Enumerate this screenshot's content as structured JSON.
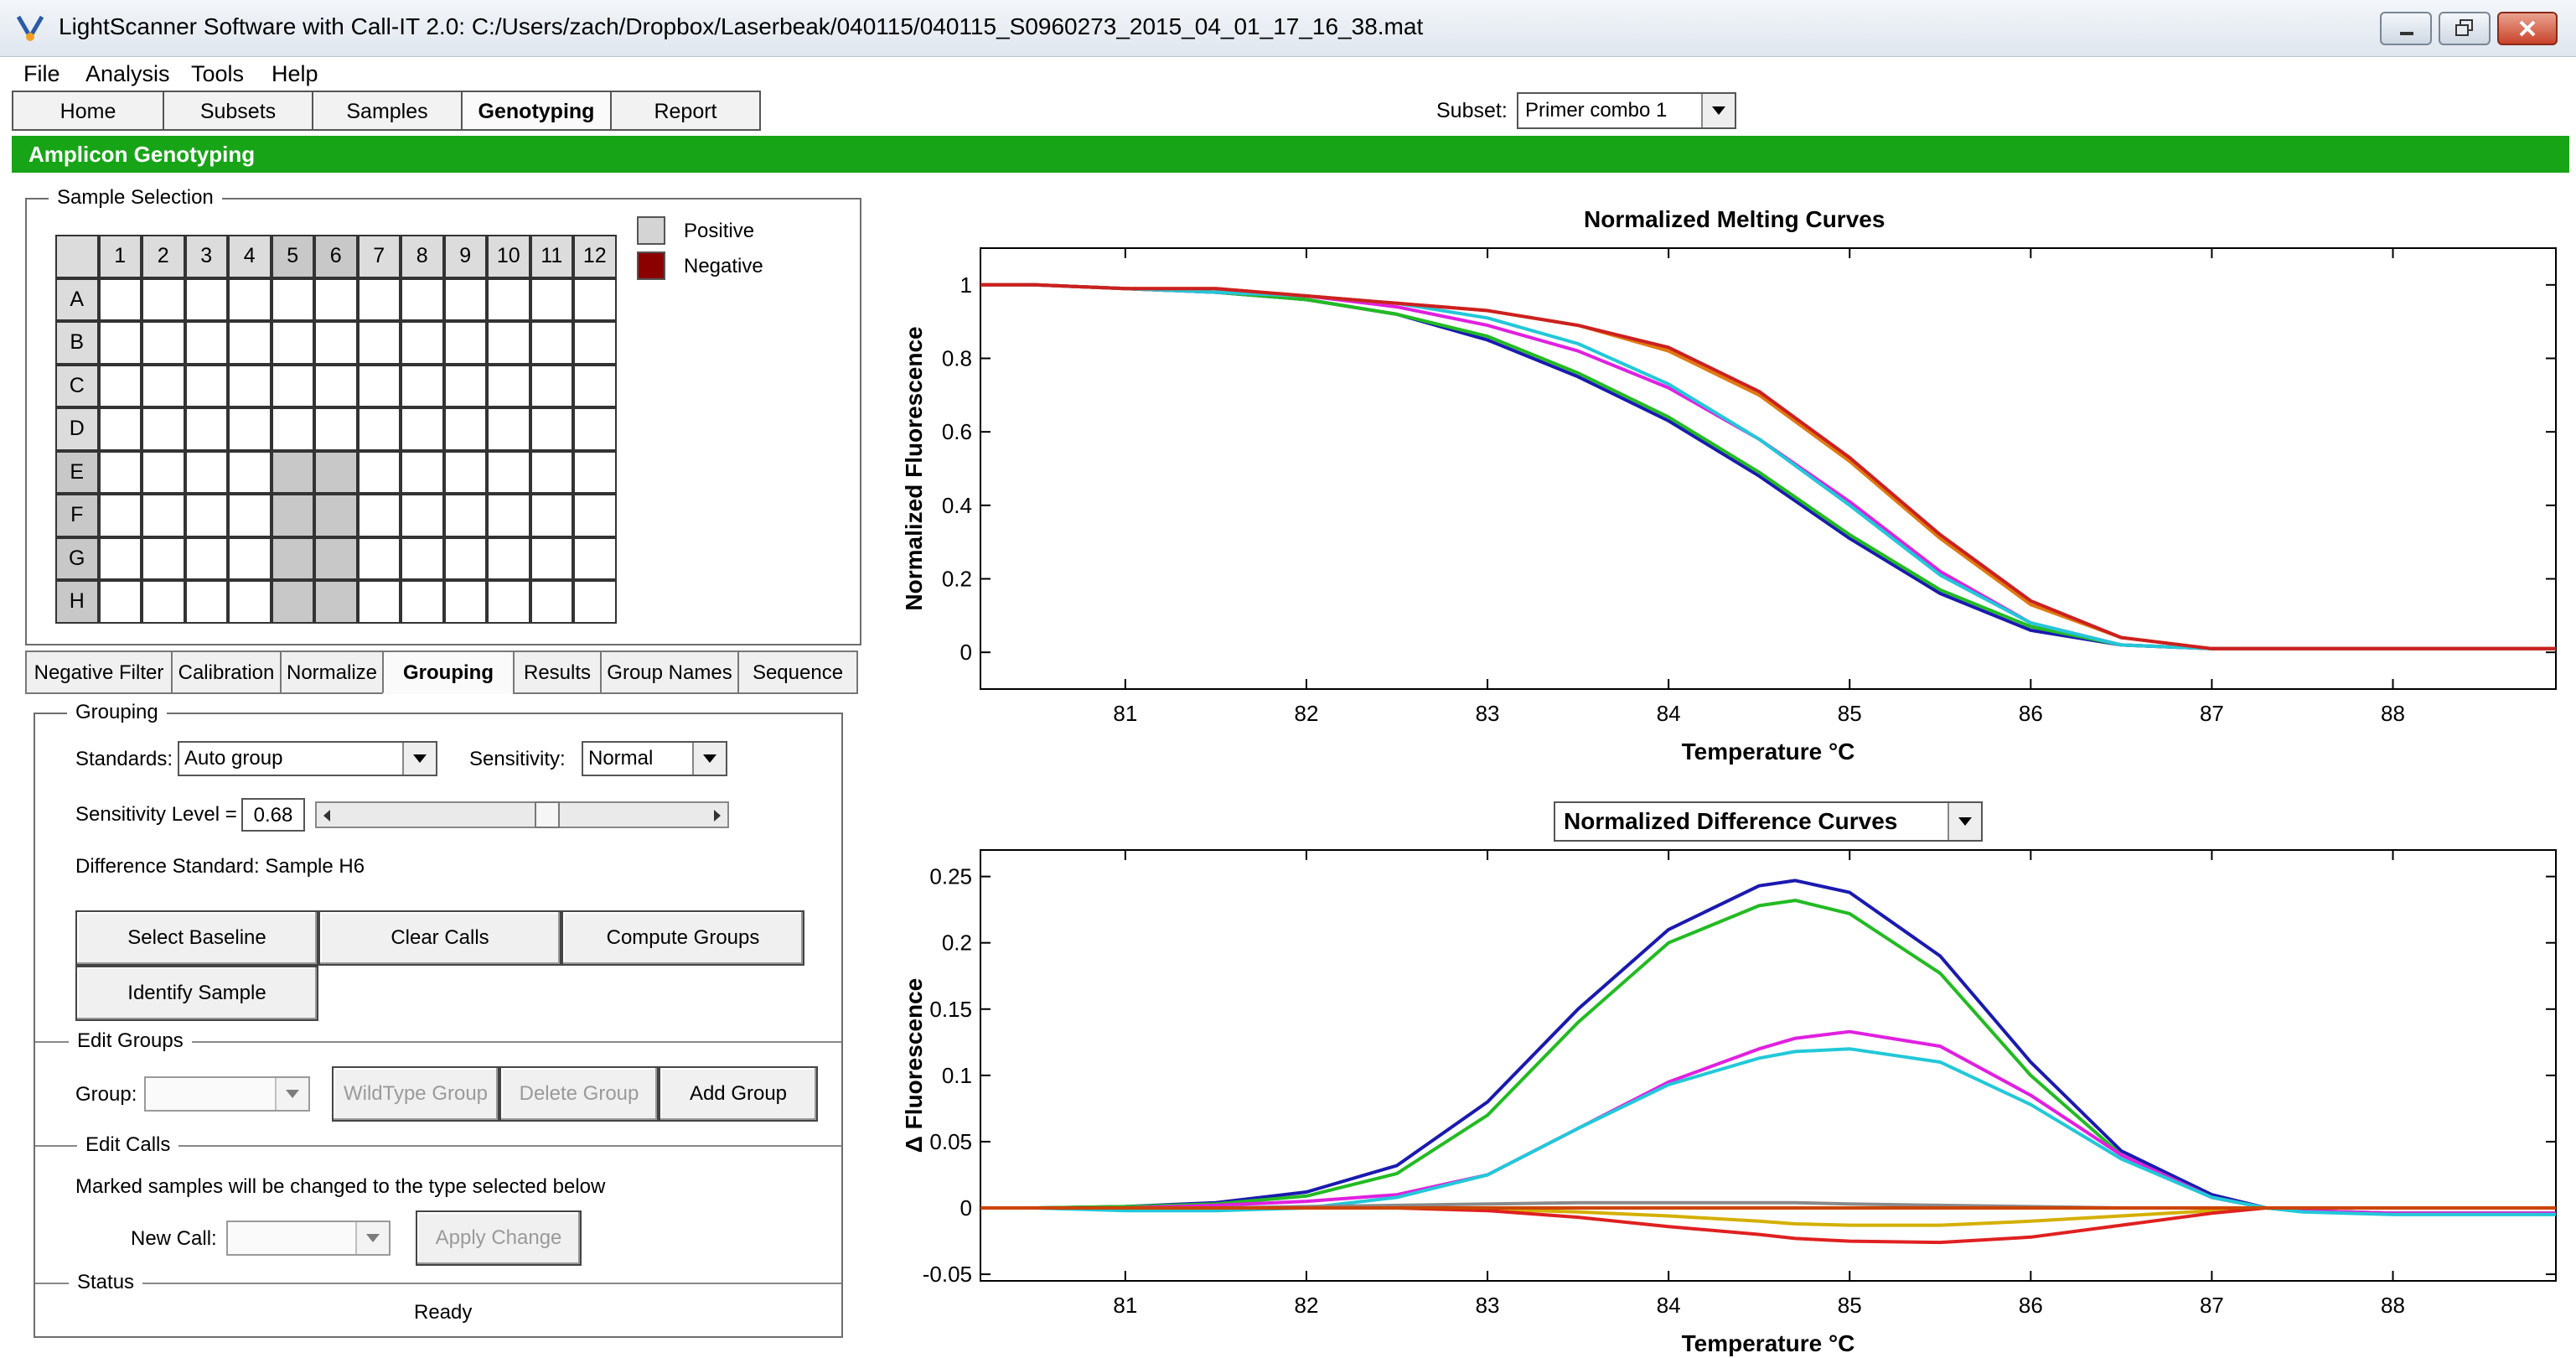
{
  "window": {
    "title": "LightScanner Software with Call-IT 2.0: C:/Users/zach/Dropbox/Laserbeak/040115/040115_S0960273_2015_04_01_17_16_38.mat"
  },
  "menu": {
    "items": [
      "File",
      "Analysis",
      "Tools",
      "Help"
    ]
  },
  "nav": {
    "tabs": [
      "Home",
      "Subsets",
      "Samples",
      "Genotyping",
      "Report"
    ],
    "active": "Genotyping",
    "subset_label": "Subset:",
    "subset_value": "Primer combo 1"
  },
  "section_title": "Amplicon Genotyping",
  "sample_selection": {
    "title": "Sample Selection",
    "columns": [
      "1",
      "2",
      "3",
      "4",
      "5",
      "6",
      "7",
      "8",
      "9",
      "10",
      "11",
      "12"
    ],
    "rows": [
      "A",
      "B",
      "C",
      "D",
      "E",
      "F",
      "G",
      "H"
    ],
    "selected_columns": [
      "5",
      "6"
    ],
    "selected_rows": [
      "E",
      "F",
      "G",
      "H"
    ],
    "legend": [
      {
        "label": "Positive",
        "color": "#d4d4d4"
      },
      {
        "label": "Negative",
        "color": "#8b0000"
      }
    ]
  },
  "subtabs": {
    "items": [
      "Negative Filter",
      "Calibration",
      "Normalize",
      "Grouping",
      "Results",
      "Group Names",
      "Sequence"
    ],
    "active": "Grouping"
  },
  "grouping": {
    "title": "Grouping",
    "standards_label": "Standards:",
    "standards_value": "Auto group",
    "sensitivity_label": "Sensitivity:",
    "sensitivity_value": "Normal",
    "level_label": "Sensitivity Level =",
    "level_value": "0.68",
    "difference_standard": "Difference Standard:  Sample H6",
    "buttons": {
      "select_baseline": "Select Baseline",
      "clear_calls": "Clear Calls",
      "compute_groups": "Compute Groups",
      "identify_sample": "Identify Sample"
    }
  },
  "edit_groups": {
    "title": "Edit Groups",
    "group_label": "Group:",
    "group_value": "",
    "buttons": {
      "wildtype": "WildType Group",
      "delete": "Delete Group",
      "add": "Add Group"
    }
  },
  "edit_calls": {
    "title": "Edit Calls",
    "instruction": "Marked samples will be changed to the type selected below",
    "new_call_label": "New Call:",
    "new_call_value": "",
    "apply_label": "Apply Change"
  },
  "status": {
    "title": "Status",
    "text": "Ready"
  },
  "difference_plot_selector": "Normalized Difference Curves",
  "chart_data": [
    {
      "type": "line",
      "title": "Normalized Melting Curves",
      "xlabel": "Temperature °C",
      "ylabel": "Normalized Fluorescence",
      "xlim": [
        80.2,
        88.9
      ],
      "ylim": [
        -0.1,
        1.1
      ],
      "xticks": [
        81,
        82,
        83,
        84,
        85,
        86,
        87,
        88
      ],
      "yticks": [
        0,
        0.2,
        0.4,
        0.6,
        0.8,
        1
      ],
      "x": [
        80.2,
        80.5,
        81.0,
        81.5,
        82.0,
        82.5,
        83.0,
        83.5,
        84.0,
        84.5,
        85.0,
        85.5,
        86.0,
        86.5,
        87.0,
        87.5,
        88.0,
        88.5,
        88.9
      ],
      "series": [
        {
          "color": "#1a1ab0",
          "values": [
            1.0,
            1.0,
            0.99,
            0.98,
            0.96,
            0.92,
            0.85,
            0.75,
            0.63,
            0.48,
            0.31,
            0.16,
            0.06,
            0.02,
            0.01,
            0.01,
            0.01,
            0.01,
            0.01
          ]
        },
        {
          "color": "#22bb22",
          "values": [
            1.0,
            1.0,
            0.99,
            0.98,
            0.96,
            0.92,
            0.86,
            0.76,
            0.64,
            0.49,
            0.32,
            0.17,
            0.07,
            0.02,
            0.01,
            0.01,
            0.01,
            0.01,
            0.01
          ]
        },
        {
          "color": "#e020e0",
          "values": [
            1.0,
            1.0,
            0.99,
            0.98,
            0.97,
            0.94,
            0.89,
            0.82,
            0.72,
            0.58,
            0.41,
            0.22,
            0.08,
            0.02,
            0.01,
            0.01,
            0.01,
            0.01,
            0.01
          ]
        },
        {
          "color": "#22c8d8",
          "values": [
            1.0,
            1.0,
            0.99,
            0.98,
            0.97,
            0.95,
            0.91,
            0.84,
            0.73,
            0.58,
            0.4,
            0.21,
            0.08,
            0.02,
            0.01,
            0.01,
            0.01,
            0.01,
            0.01
          ]
        },
        {
          "color": "#e07a10",
          "values": [
            1.0,
            1.0,
            0.99,
            0.99,
            0.97,
            0.95,
            0.93,
            0.89,
            0.82,
            0.7,
            0.52,
            0.31,
            0.13,
            0.04,
            0.01,
            0.01,
            0.01,
            0.01,
            0.01
          ]
        },
        {
          "color": "#cc2020",
          "values": [
            1.0,
            1.0,
            0.99,
            0.99,
            0.97,
            0.95,
            0.93,
            0.89,
            0.83,
            0.71,
            0.53,
            0.32,
            0.14,
            0.04,
            0.01,
            0.01,
            0.01,
            0.01,
            0.01
          ]
        }
      ]
    },
    {
      "type": "line",
      "title": "Normalized Difference Curves",
      "xlabel": "Temperature °C",
      "ylabel": "Δ Fluorescence",
      "xlim": [
        80.2,
        88.9
      ],
      "ylim": [
        -0.055,
        0.27
      ],
      "xticks": [
        81,
        82,
        83,
        84,
        85,
        86,
        87,
        88
      ],
      "yticks": [
        -0.05,
        0,
        0.05,
        0.1,
        0.15,
        0.2,
        0.25
      ],
      "x": [
        80.2,
        80.5,
        81.0,
        81.5,
        82.0,
        82.5,
        83.0,
        83.5,
        84.0,
        84.5,
        84.7,
        85.0,
        85.5,
        86.0,
        86.5,
        87.0,
        87.3,
        87.5,
        88.0,
        88.5,
        88.9
      ],
      "series": [
        {
          "color": "#1a1ab0",
          "values": [
            0,
            0,
            0.001,
            0.004,
            0.012,
            0.032,
            0.08,
            0.15,
            0.21,
            0.243,
            0.247,
            0.238,
            0.19,
            0.11,
            0.043,
            0.01,
            0.0,
            -0.002,
            -0.004,
            -0.004,
            -0.004
          ]
        },
        {
          "color": "#22bb22",
          "values": [
            0,
            0,
            0.001,
            0.003,
            0.009,
            0.026,
            0.07,
            0.14,
            0.2,
            0.228,
            0.232,
            0.222,
            0.177,
            0.1,
            0.04,
            0.008,
            0.0,
            -0.002,
            -0.004,
            -0.004,
            -0.004
          ]
        },
        {
          "color": "#e020e0",
          "values": [
            0,
            0,
            0.0,
            0.002,
            0.005,
            0.01,
            0.025,
            0.06,
            0.095,
            0.12,
            0.128,
            0.133,
            0.122,
            0.085,
            0.04,
            0.008,
            0.0,
            -0.002,
            -0.004,
            -0.004,
            -0.004
          ]
        },
        {
          "color": "#22c8d8",
          "values": [
            0,
            0,
            -0.002,
            -0.002,
            0.0,
            0.008,
            0.025,
            0.06,
            0.093,
            0.113,
            0.118,
            0.12,
            0.11,
            0.078,
            0.037,
            0.008,
            0.0,
            -0.003,
            -0.005,
            -0.005,
            -0.005
          ]
        },
        {
          "color": "#d4b000",
          "values": [
            0,
            0,
            0,
            0,
            0,
            0,
            -0.001,
            -0.003,
            -0.006,
            -0.01,
            -0.012,
            -0.013,
            -0.013,
            -0.01,
            -0.006,
            -0.002,
            0,
            0,
            0,
            0,
            0
          ]
        },
        {
          "color": "#e02020",
          "values": [
            0,
            0,
            0,
            0,
            0,
            0,
            -0.002,
            -0.007,
            -0.014,
            -0.02,
            -0.023,
            -0.025,
            -0.026,
            -0.022,
            -0.013,
            -0.004,
            0,
            0,
            0,
            0,
            0
          ]
        },
        {
          "color": "#8a8a8a",
          "values": [
            0,
            0,
            0,
            0,
            0.001,
            0.002,
            0.003,
            0.004,
            0.004,
            0.004,
            0.004,
            0.003,
            0.002,
            0.001,
            0.0,
            0,
            0,
            0,
            0,
            0,
            0
          ]
        },
        {
          "color": "#cc4400",
          "values": [
            0,
            0,
            0,
            0,
            0,
            0,
            0,
            0,
            0,
            0,
            0,
            0,
            0,
            0,
            0,
            0,
            0,
            0,
            0,
            0,
            0
          ]
        }
      ]
    }
  ]
}
